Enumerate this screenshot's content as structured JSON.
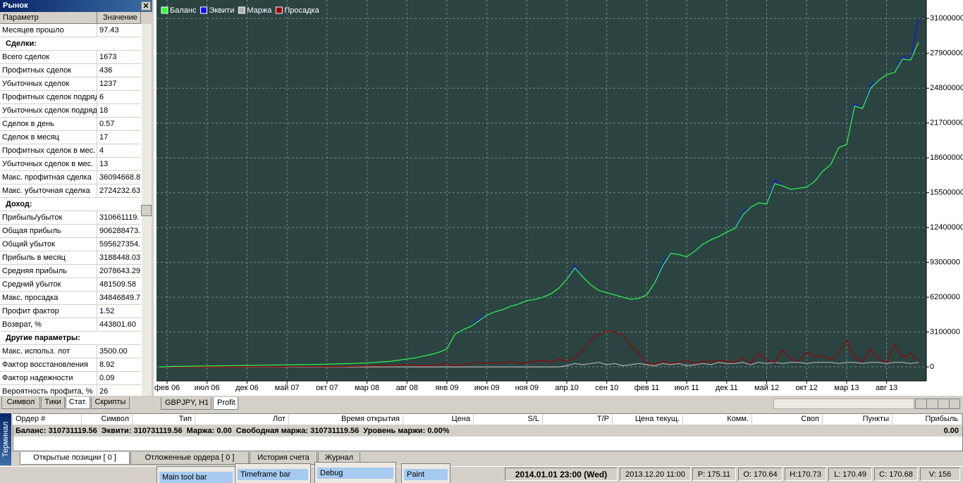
{
  "left_panel": {
    "title": "Рынок",
    "columns": [
      "Параметр",
      "Значение"
    ],
    "rows": [
      {
        "label": "Месяцев прошло",
        "value": "97.43"
      },
      {
        "section": "Сделки:"
      },
      {
        "label": "Всего сделок",
        "value": "1673"
      },
      {
        "label": "Профитных сделок",
        "value": "436"
      },
      {
        "label": "Убыточных сделок",
        "value": "1237"
      },
      {
        "label": "Профитных сделок подряд",
        "value": "6"
      },
      {
        "label": "Убыточных сделок подряд",
        "value": "18"
      },
      {
        "label": "Сделок в день",
        "value": "0.57"
      },
      {
        "label": "Сделок в месяц",
        "value": "17"
      },
      {
        "label": "Профитных сделок в мес.",
        "value": "4"
      },
      {
        "label": "Убыточных сделок в мес.",
        "value": "13"
      },
      {
        "label": "Макс. профитная сделка",
        "value": "36094668.8"
      },
      {
        "label": "Макс. убыточная сделка",
        "value": "2724232.63"
      },
      {
        "section": "Доход:"
      },
      {
        "label": "Прибыль/убыток",
        "value": "310661119."
      },
      {
        "label": "Общая прибыль",
        "value": "906288473."
      },
      {
        "label": "Общий убыток",
        "value": "595627354."
      },
      {
        "label": "Прибыль в месяц",
        "value": "3188448.03"
      },
      {
        "label": "Средняя прибыль",
        "value": "2078643.29"
      },
      {
        "label": "Средний убыток",
        "value": "481509.58"
      },
      {
        "label": "Макс. просадка",
        "value": "34846849.7"
      },
      {
        "label": "Профит фактор",
        "value": "1.52"
      },
      {
        "label": "Возврат, %",
        "value": "443801.60"
      },
      {
        "section": "Другие параметры:"
      },
      {
        "label": "Макс. использ. лот",
        "value": "3500.00"
      },
      {
        "label": "Фактор восстановления",
        "value": "8.92"
      },
      {
        "label": "Фактор надежности",
        "value": "0.09"
      },
      {
        "label": "Вероятность профита, %",
        "value": "26"
      }
    ],
    "tabs": [
      "Символ",
      "Тики",
      "Стат.",
      "Скрипты"
    ]
  },
  "chart_data": {
    "type": "line",
    "legend": "upper left",
    "grid": true,
    "categories": [
      null,
      "фев 06",
      null,
      null,
      null,
      null,
      "июл 06",
      null,
      null,
      null,
      null,
      "дек 06",
      null,
      null,
      null,
      null,
      "май 07",
      null,
      null,
      null,
      null,
      "окт 07",
      null,
      null,
      null,
      null,
      "мар 08",
      null,
      null,
      null,
      null,
      "авг 08",
      null,
      null,
      null,
      null,
      "янв 09",
      null,
      null,
      null,
      null,
      "июн 09",
      null,
      null,
      null,
      null,
      "ноя 09",
      null,
      null,
      null,
      null,
      "апр 10",
      null,
      null,
      null,
      null,
      "сен 10",
      null,
      null,
      null,
      null,
      "фев 11",
      null,
      null,
      null,
      null,
      "июл 11",
      null,
      null,
      null,
      null,
      "дек 11",
      null,
      null,
      null,
      null,
      "май 12",
      null,
      null,
      null,
      null,
      "окт 12",
      null,
      null,
      null,
      null,
      "мар 13",
      null,
      null,
      null,
      null,
      "авг 13",
      null,
      null,
      null,
      null
    ],
    "series": [
      {
        "name": "Баланс",
        "color": "#33ff33",
        "values": [
          0,
          20000,
          40000,
          50000,
          60000,
          70000,
          80000,
          90000,
          100000,
          110000,
          120000,
          130000,
          140000,
          150000,
          160000,
          170000,
          180000,
          190000,
          200000,
          210000,
          220000,
          240000,
          260000,
          280000,
          300000,
          320000,
          350000,
          400000,
          450000,
          500000,
          600000,
          700000,
          800000,
          950000,
          1100000,
          1300000,
          1600000,
          2900000,
          3300000,
          3600000,
          4100000,
          4600000,
          4900000,
          5100000,
          5400000,
          5600000,
          5900000,
          6000000,
          6200000,
          6500000,
          7000000,
          7800000,
          8800000,
          8000000,
          7300000,
          6800000,
          6600000,
          6400000,
          6200000,
          6000000,
          6100000,
          6400000,
          7500000,
          9000000,
          10100000,
          10000000,
          9800000,
          10300000,
          10900000,
          11300000,
          11600000,
          12000000,
          12300000,
          13500000,
          14200000,
          14600000,
          14500000,
          16300000,
          16100000,
          15800000,
          15900000,
          16000000,
          16500000,
          17400000,
          18000000,
          19500000,
          19800000,
          23200000,
          23000000,
          24800000,
          25500000,
          26000000,
          26200000,
          27400000,
          27300000,
          28900000
        ]
      },
      {
        "name": "Эквити",
        "color": "#1010ff",
        "values": [
          0,
          20000,
          40000,
          50000,
          60000,
          70000,
          80000,
          90000,
          100000,
          110000,
          120000,
          130000,
          140000,
          150000,
          160000,
          170000,
          180000,
          190000,
          200000,
          210000,
          220000,
          240000,
          260000,
          280000,
          300000,
          320000,
          350000,
          400000,
          450000,
          500000,
          600000,
          700000,
          800000,
          950000,
          1100000,
          1300000,
          1600000,
          2900000,
          3300000,
          3600000,
          4300000,
          4600000,
          4900000,
          5100000,
          5400000,
          5600000,
          5900000,
          6000000,
          6200000,
          6500000,
          7000000,
          7800000,
          9000000,
          8000000,
          7300000,
          6800000,
          6600000,
          6400000,
          6200000,
          6000000,
          6100000,
          6400000,
          7500000,
          9300000,
          10100000,
          10000000,
          9800000,
          10300000,
          10900000,
          11300000,
          11600000,
          12000000,
          12300000,
          13800000,
          14200000,
          14600000,
          14500000,
          16600000,
          16100000,
          15800000,
          15900000,
          16000000,
          16500000,
          17400000,
          18000000,
          19500000,
          19800000,
          23400000,
          23000000,
          25100000,
          25500000,
          26000000,
          26200000,
          27600000,
          27300000,
          31000000
        ]
      },
      {
        "name": "Маржа",
        "color": "#b0b0b0",
        "values": [
          0,
          0,
          0,
          0,
          0,
          0,
          0,
          0,
          0,
          0,
          0,
          0,
          0,
          0,
          0,
          0,
          0,
          0,
          0,
          0,
          0,
          0,
          0,
          0,
          0,
          0,
          0,
          0,
          0,
          0,
          0,
          0,
          0,
          0,
          0,
          0,
          0,
          0,
          0,
          0,
          0,
          0,
          0,
          0,
          0,
          0,
          0,
          0,
          0,
          0,
          0,
          100000,
          300000,
          200000,
          300000,
          400000,
          200000,
          300000,
          100000,
          200000,
          300000,
          200000,
          100000,
          300000,
          200000,
          300000,
          100000,
          200000,
          300000,
          200000,
          400000,
          300000,
          300000,
          400000,
          200000,
          400000,
          300000,
          400000,
          300000,
          400000,
          400000,
          300000,
          400000,
          400000,
          400000,
          300000,
          400000,
          400000,
          300000,
          400000,
          400000,
          300000,
          400000,
          400000,
          300000,
          400000
        ]
      },
      {
        "name": "Просадка",
        "color": "#9a0000",
        "values": [
          0,
          0,
          0,
          0,
          0,
          0,
          0,
          0,
          0,
          0,
          0,
          10000,
          10000,
          10000,
          10000,
          10000,
          20000,
          20000,
          20000,
          20000,
          30000,
          30000,
          30000,
          30000,
          50000,
          50000,
          80000,
          100000,
          120000,
          100000,
          150000,
          200000,
          150000,
          100000,
          120000,
          200000,
          300000,
          100000,
          200000,
          300000,
          400000,
          300000,
          400000,
          300000,
          500000,
          300000,
          400000,
          500000,
          600000,
          400000,
          700000,
          500000,
          800000,
          1500000,
          2400000,
          2900000,
          3200000,
          3100000,
          2800000,
          1900000,
          1200000,
          300000,
          200000,
          500000,
          300000,
          400000,
          600000,
          300000,
          500000,
          400000,
          600000,
          500000,
          400000,
          800000,
          300000,
          1200000,
          600000,
          400000,
          1500000,
          700000,
          500000,
          1300000,
          900000,
          1000000,
          600000,
          1200000,
          2400000,
          800000,
          500000,
          1600000,
          700000,
          400000,
          2000000,
          800000,
          1200000,
          500000
        ]
      }
    ],
    "ylim": [
      -1250000,
      32400000
    ],
    "yticks": [
      0,
      3100000,
      6200000,
      9300000,
      12400000,
      15500000,
      18600000,
      21700000,
      24800000,
      27900000,
      31000000
    ]
  },
  "chart_tabs": [
    "GBPJPY, H1",
    "Profit"
  ],
  "terminal": {
    "side_label": "Терминал",
    "columns": [
      "Ордер #",
      "Символ",
      "Тип",
      "Лот",
      "Время открытия",
      "Цена",
      "S/L",
      "T/P",
      "Цена текущ.",
      "Комм.",
      "Своп",
      "Пункты",
      "Прибыль"
    ],
    "summary": [
      "Баланс: 310731119.56",
      "Эквити: 310731119.56",
      "Маржа: 0.00",
      "Свободная маржа: 310731119.56",
      "Уровень маржи: 0.00%"
    ],
    "summary_profit": "0.00",
    "tabs": [
      "Открытые позиции [ 0 ]",
      "Отложенные ордера [ 0 ]",
      "История счета",
      "Журнал"
    ]
  },
  "status_bar": {
    "toolbars": [
      "Main tool bar",
      "Timeframe bar",
      "Debug",
      "Paint"
    ],
    "fields": [
      "2014.01.01 23:00 (Wed)",
      "2013.12.20 11:00",
      "P: 175.11",
      "O: 170.64",
      "H:170.73",
      "L: 170.49",
      "C: 170.68",
      "V: 156"
    ]
  }
}
